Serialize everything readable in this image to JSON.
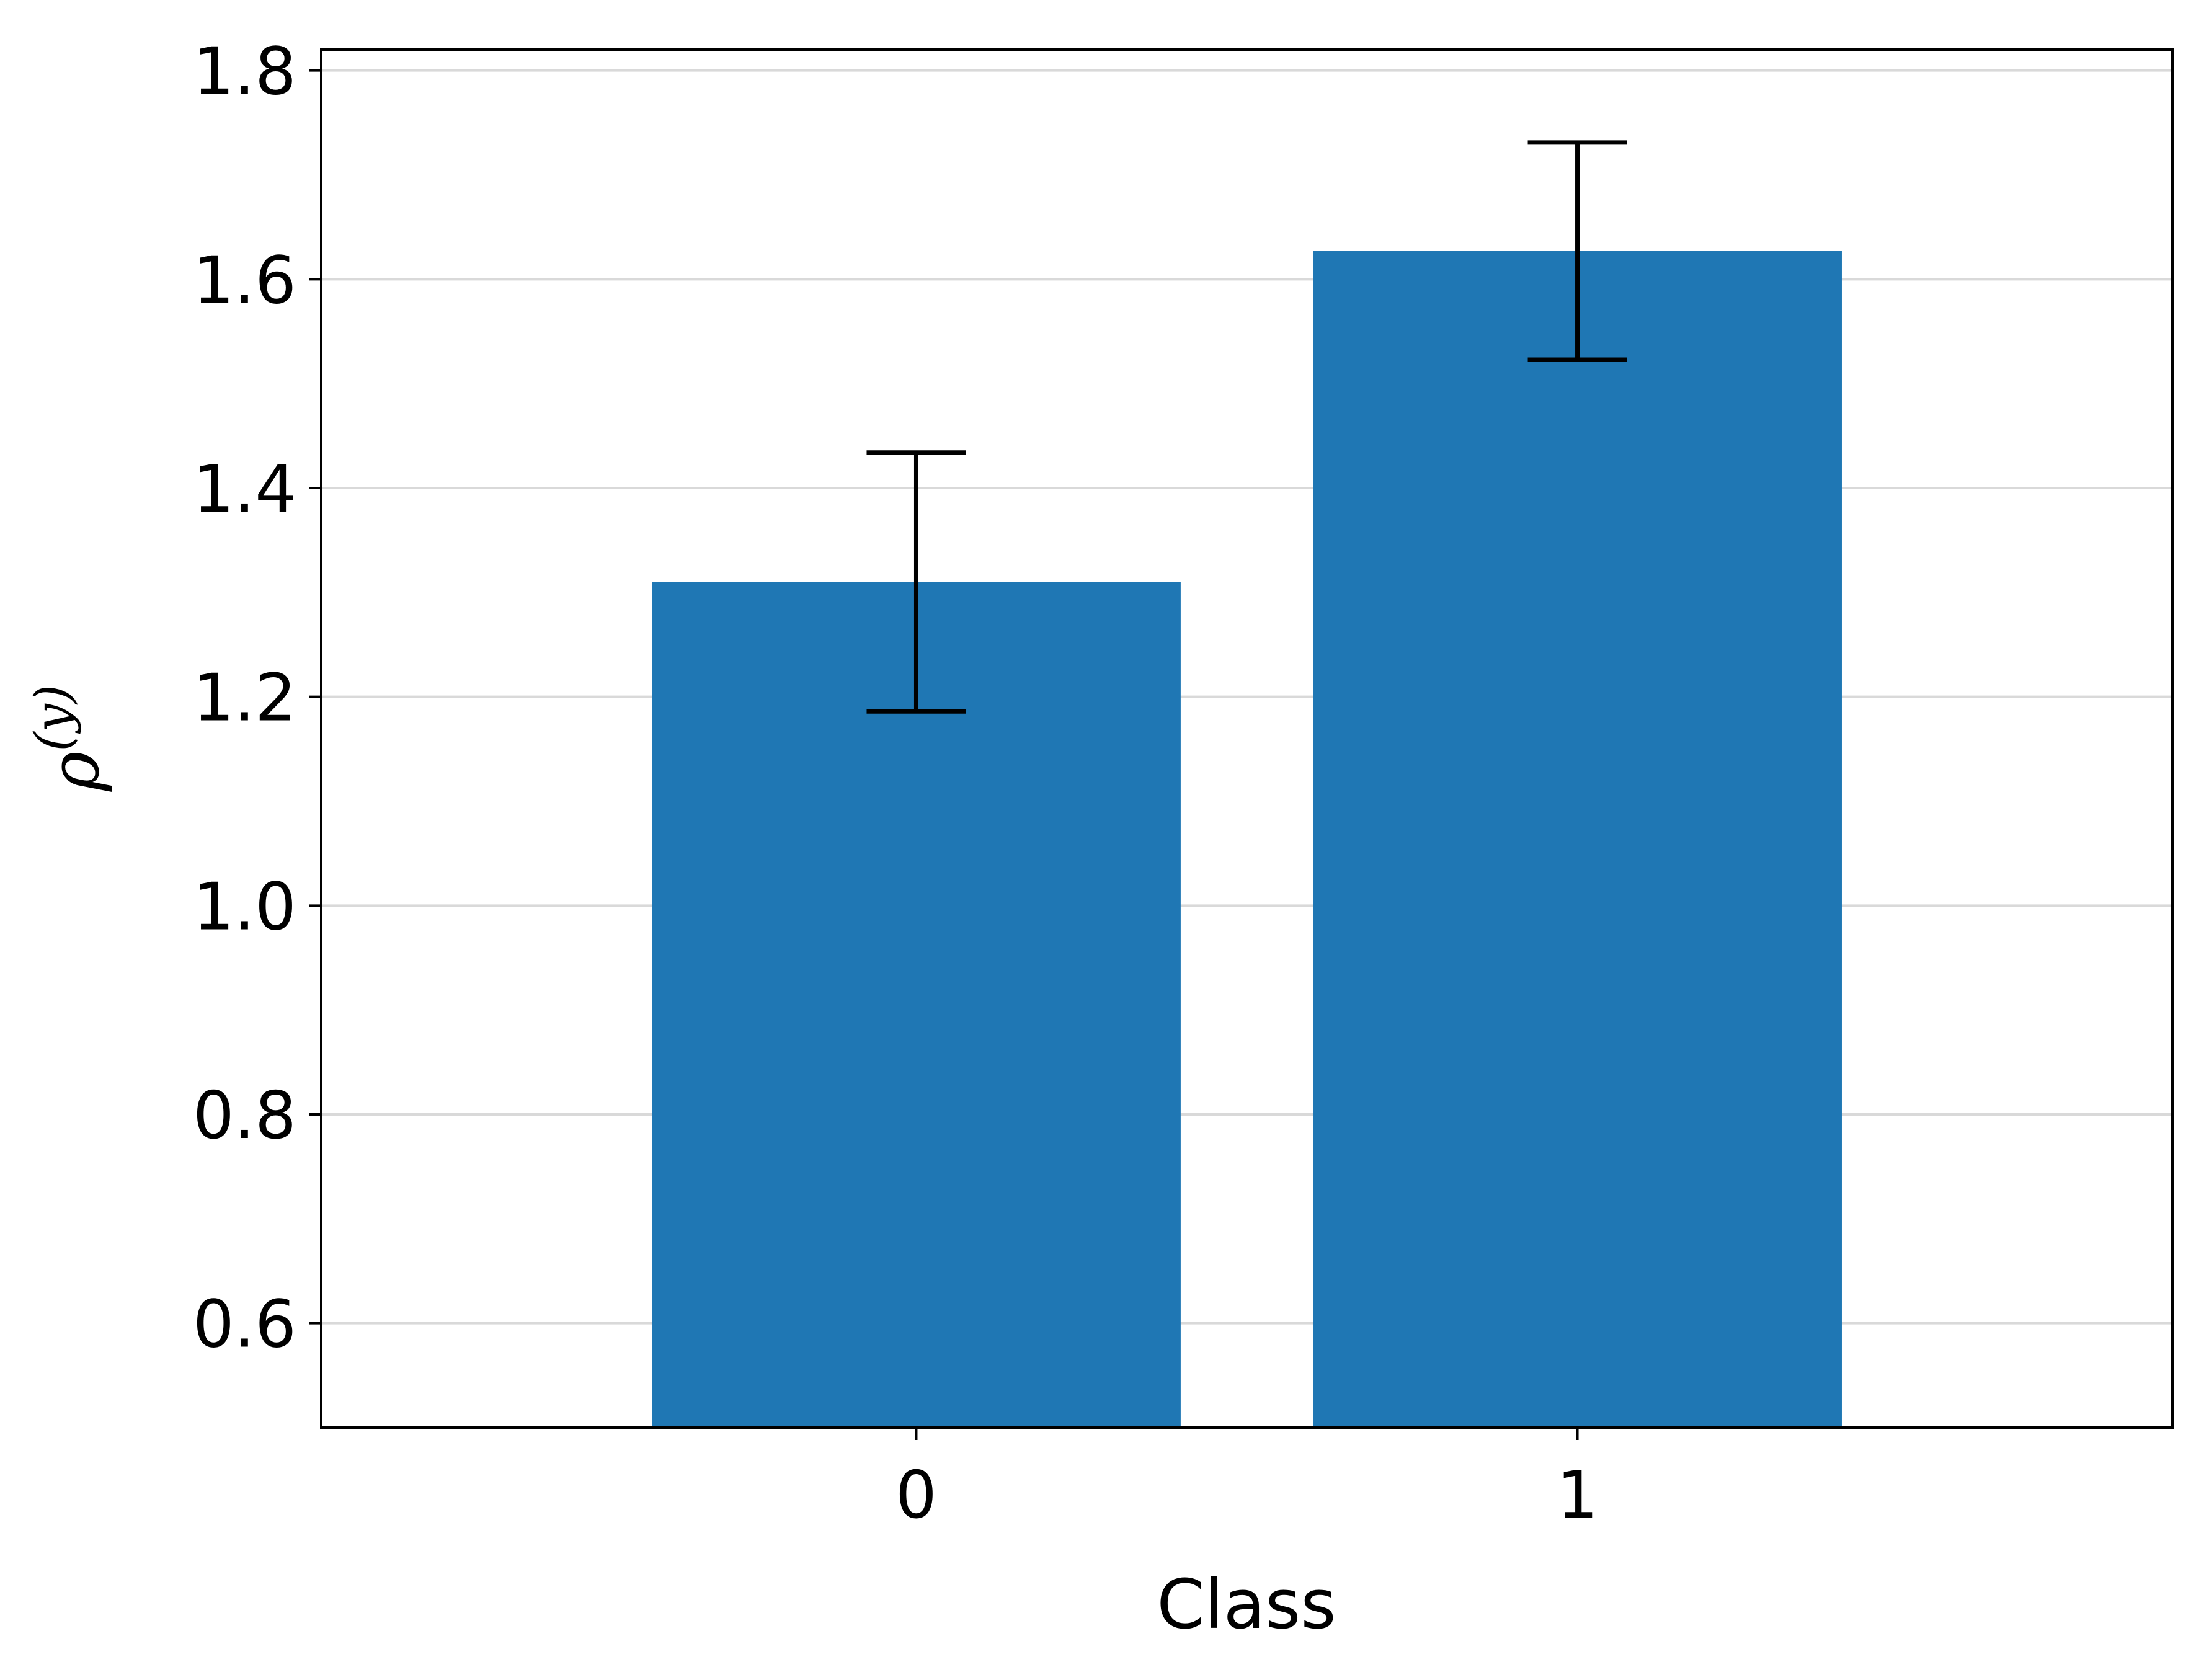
{
  "chart_data": {
    "type": "bar",
    "categories": [
      "0",
      "1"
    ],
    "values": [
      1.31,
      1.627
    ],
    "errors": [
      [
        1.186,
        1.434
      ],
      [
        1.523,
        1.731
      ]
    ],
    "xlabel": "Class",
    "ylabel": {
      "base": "ρ",
      "sup": "(y)"
    },
    "ylim": [
      0.5,
      1.82
    ],
    "yticks": [
      0.6,
      0.8,
      1.0,
      1.2,
      1.4,
      1.6,
      1.8
    ],
    "ytick_labels": [
      "0.6",
      "0.8",
      "1.0",
      "1.2",
      "1.4",
      "1.6",
      "1.8"
    ],
    "grid": "horizontal",
    "colors": {
      "bar": "#1f77b4",
      "grid": "#d9d9d9",
      "error": "#000000"
    }
  }
}
